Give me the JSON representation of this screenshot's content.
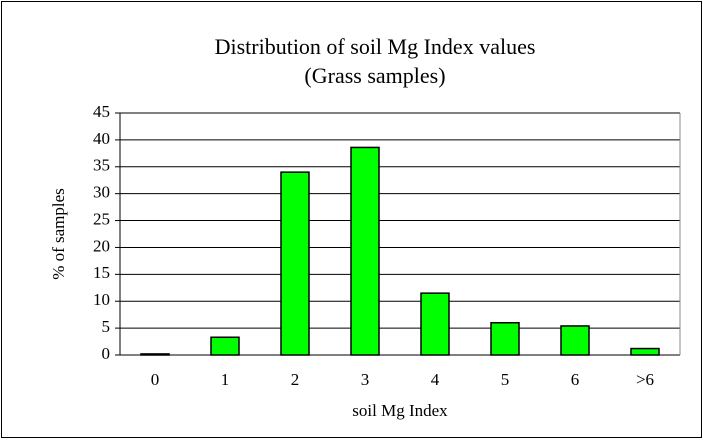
{
  "chart_data": {
    "type": "bar",
    "title": "Distribution of soil Mg Index values",
    "subtitle": "(Grass samples)",
    "x_label": "soil Mg Index",
    "y_label": "% of samples",
    "categories": [
      "0",
      "1",
      "2",
      "3",
      "4",
      "5",
      "6",
      ">6"
    ],
    "values": [
      0.2,
      3.3,
      34,
      38.6,
      11.5,
      6,
      5.4,
      1.2
    ],
    "color": "#00ff00",
    "ylim": [
      0,
      45
    ],
    "yticks": [
      0,
      5,
      10,
      15,
      20,
      25,
      30,
      35,
      40,
      45
    ],
    "grid": true
  }
}
